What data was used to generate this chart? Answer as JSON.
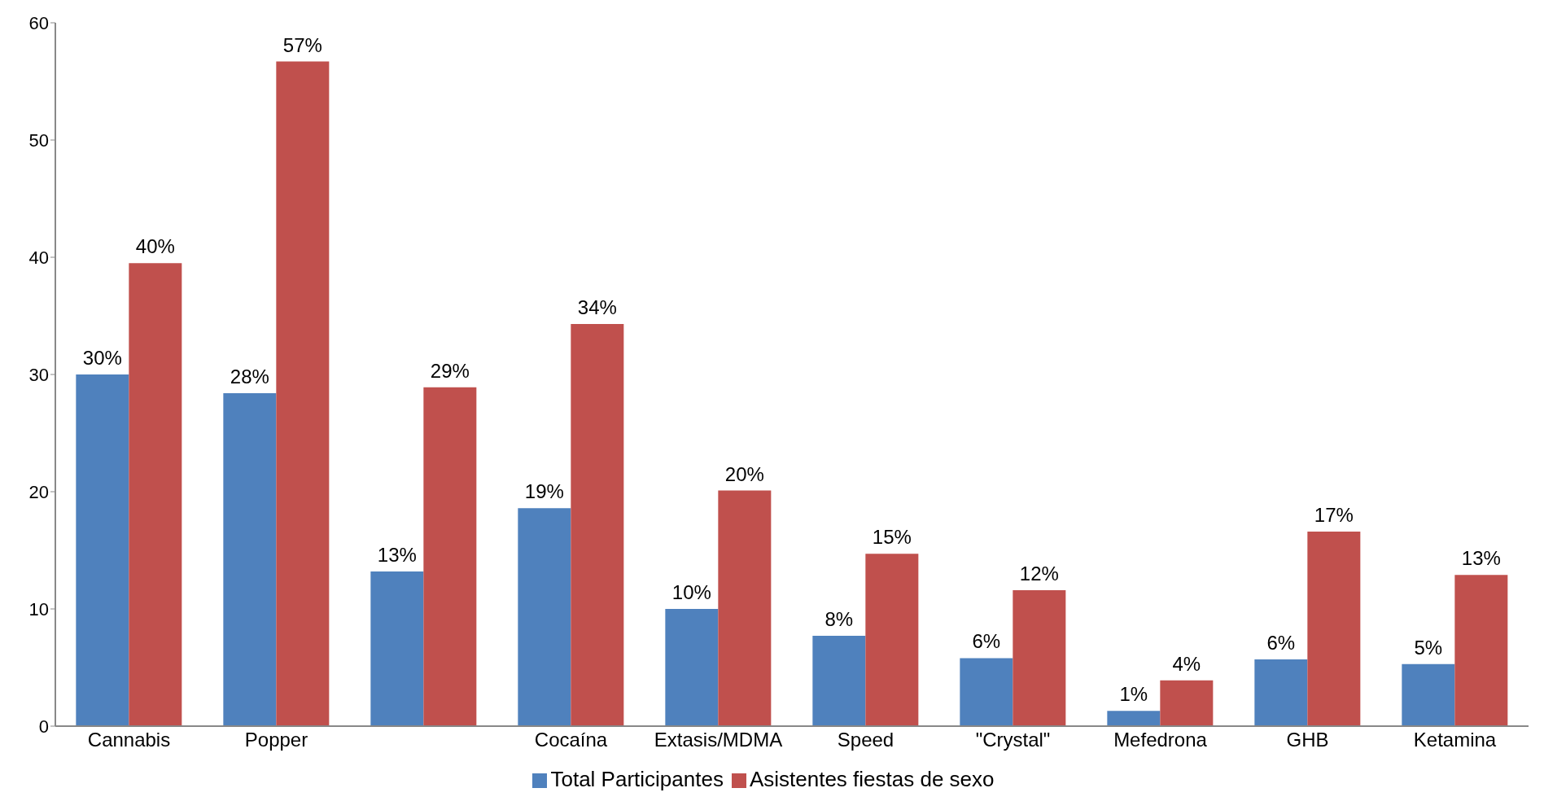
{
  "chart_data": {
    "type": "bar",
    "categories": [
      "Cannabis",
      "Popper",
      null,
      "Cocaína",
      "Extasis/MDMA",
      "Speed",
      "\"Crystal\"",
      "Mefedrona",
      "GHB",
      "Ketamina"
    ],
    "series": [
      {
        "name": "Total Participantes",
        "color": "#4f81bd",
        "values": [
          30.0,
          28.4,
          13.2,
          18.6,
          10.0,
          7.7,
          5.8,
          1.3,
          5.7,
          5.3
        ],
        "value_labels": [
          "30%",
          "28%",
          "13%",
          "19%",
          "10%",
          "8%",
          "6%",
          "1%",
          "6%",
          "5%"
        ]
      },
      {
        "name": "Asistentes fiestas de sexo",
        "color": "#c0504d",
        "values": [
          39.5,
          56.7,
          28.9,
          34.3,
          20.1,
          14.7,
          11.6,
          3.9,
          16.6,
          12.9
        ],
        "value_labels": [
          "40%",
          "57%",
          "29%",
          "34%",
          "20%",
          "15%",
          "12%",
          "4%",
          "17%",
          "13%"
        ]
      }
    ],
    "ylim": [
      0,
      60
    ],
    "yticks": [
      0,
      10,
      20,
      30,
      40,
      50,
      60
    ],
    "grid": false,
    "legend": "bottom"
  }
}
